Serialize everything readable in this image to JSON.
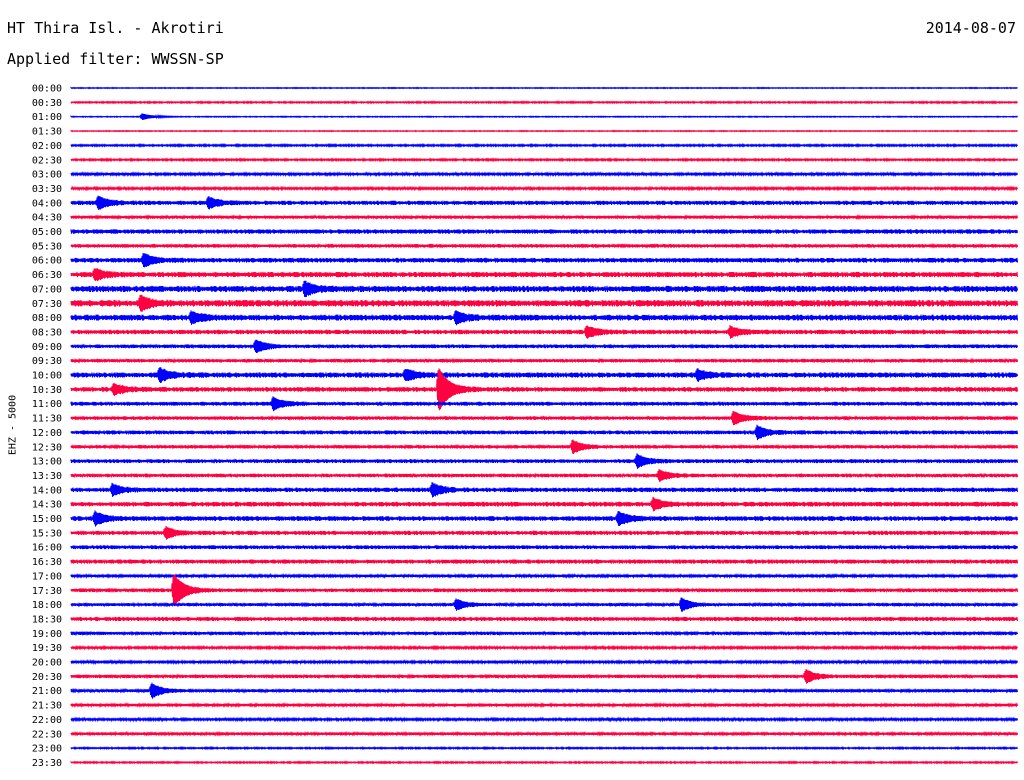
{
  "header": {
    "station": "HT Thira Isl. - Akrotiri",
    "date": "2014-08-07",
    "filter": "Applied filter: WWSSN-SP"
  },
  "channel_label": "EHZ - 5000",
  "chart_data": {
    "type": "line",
    "subtype": "helicorder",
    "title": "HT Thira Isl. - Akrotiri",
    "date": "2014-08-07",
    "filter": "WWSSN-SP",
    "channel": "EHZ - 5000",
    "row_labels": [
      "00:00",
      "00:30",
      "01:00",
      "01:30",
      "02:00",
      "02:30",
      "03:00",
      "03:30",
      "04:00",
      "04:30",
      "05:00",
      "05:30",
      "06:00",
      "06:30",
      "07:00",
      "07:30",
      "08:00",
      "08:30",
      "09:00",
      "09:30",
      "10:00",
      "10:30",
      "11:00",
      "11:30",
      "12:00",
      "12:30",
      "13:00",
      "13:30",
      "14:00",
      "14:30",
      "15:00",
      "15:30",
      "16:00",
      "16:30",
      "17:00",
      "17:30",
      "18:00",
      "18:30",
      "19:00",
      "19:30",
      "20:00",
      "20:30",
      "21:00",
      "21:30",
      "22:00",
      "22:30",
      "23:00",
      "23:30"
    ],
    "colors": [
      "#0000ff",
      "#ff0040"
    ],
    "row_noise_level": [
      0.3,
      0.5,
      0.3,
      0.3,
      0.6,
      0.6,
      0.8,
      0.8,
      1.5,
      1.1,
      1.6,
      1.3,
      1.7,
      1.9,
      2.2,
      2.4,
      2.1,
      1.6,
      1.3,
      1.2,
      1.9,
      1.7,
      1.4,
      1.3,
      1.4,
      1.2,
      1.4,
      1.3,
      1.6,
      1.7,
      1.7,
      1.5,
      1.4,
      1.5,
      0.9,
      1.3,
      1.1,
      1.5,
      1.2,
      0.8,
      0.8,
      1.2,
      1.1,
      1.0,
      0.8,
      1.0,
      0.5,
      0.5
    ],
    "events": [
      {
        "row": 2,
        "minute": 4.5,
        "amplitude": 3
      },
      {
        "row": 8,
        "minute": 1.7,
        "amplitude": 6
      },
      {
        "row": 8,
        "minute": 8.7,
        "amplitude": 5
      },
      {
        "row": 12,
        "minute": 4.6,
        "amplitude": 6
      },
      {
        "row": 13,
        "minute": 1.5,
        "amplitude": 5
      },
      {
        "row": 14,
        "minute": 14.8,
        "amplitude": 6
      },
      {
        "row": 15,
        "minute": 4.4,
        "amplitude": 6
      },
      {
        "row": 16,
        "minute": 7.6,
        "amplitude": 5
      },
      {
        "row": 16,
        "minute": 24.4,
        "amplitude": 5
      },
      {
        "row": 17,
        "minute": 32.7,
        "amplitude": 5
      },
      {
        "row": 17,
        "minute": 41.8,
        "amplitude": 5
      },
      {
        "row": 18,
        "minute": 11.7,
        "amplitude": 6
      },
      {
        "row": 20,
        "minute": 5.6,
        "amplitude": 6
      },
      {
        "row": 20,
        "minute": 21.2,
        "amplitude": 5
      },
      {
        "row": 20,
        "minute": 39.7,
        "amplitude": 5
      },
      {
        "row": 21,
        "minute": 2.7,
        "amplitude": 5
      },
      {
        "row": 21,
        "minute": 23.3,
        "amplitude": 21
      },
      {
        "row": 22,
        "minute": 12.8,
        "amplitude": 6
      },
      {
        "row": 23,
        "minute": 42.0,
        "amplitude": 6
      },
      {
        "row": 24,
        "minute": 43.5,
        "amplitude": 6
      },
      {
        "row": 25,
        "minute": 31.8,
        "amplitude": 6
      },
      {
        "row": 26,
        "minute": 35.9,
        "amplitude": 6
      },
      {
        "row": 27,
        "minute": 37.3,
        "amplitude": 5
      },
      {
        "row": 28,
        "minute": 2.6,
        "amplitude": 5
      },
      {
        "row": 28,
        "minute": 22.9,
        "amplitude": 6
      },
      {
        "row": 29,
        "minute": 36.9,
        "amplitude": 5
      },
      {
        "row": 30,
        "minute": 1.5,
        "amplitude": 6
      },
      {
        "row": 30,
        "minute": 34.7,
        "amplitude": 6
      },
      {
        "row": 31,
        "minute": 6.0,
        "amplitude": 5
      },
      {
        "row": 35,
        "minute": 6.5,
        "amplitude": 16
      },
      {
        "row": 36,
        "minute": 24.4,
        "amplitude": 5
      },
      {
        "row": 36,
        "minute": 38.7,
        "amplitude": 6
      },
      {
        "row": 41,
        "minute": 46.6,
        "amplitude": 6
      },
      {
        "row": 42,
        "minute": 5.1,
        "amplitude": 7
      }
    ]
  }
}
